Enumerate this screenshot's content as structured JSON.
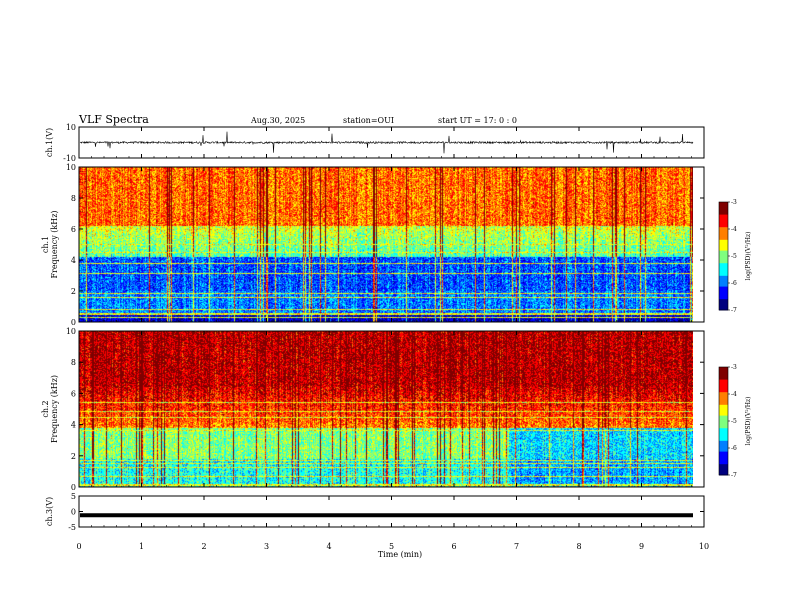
{
  "header": {
    "title": "VLF Spectra",
    "date": "Aug.30, 2025",
    "station": "station=OUI",
    "start": "start  UT =   17: 0  : 0"
  },
  "chart_data": [
    {
      "type": "line",
      "ylabel": "ch.1(V)",
      "ylim": [
        -10,
        10
      ],
      "yticks": [
        "10",
        "-10"
      ],
      "baseline": 0,
      "noise_amplitude": 1.2,
      "color": "#000000",
      "grid": false
    },
    {
      "type": "heatmap",
      "ylabel": "ch.1\nFrequency (kHz)",
      "ylim": [
        0,
        10
      ],
      "yticks": [
        "0",
        "2",
        "4",
        "6",
        "8",
        "10"
      ],
      "colorbar": {
        "label": "log(PSD)(V²/Hz)",
        "ticks": [
          "-3",
          "-4",
          "-5",
          "-6",
          "-7"
        ],
        "range": [
          -7,
          -3
        ]
      }
    },
    {
      "type": "heatmap",
      "ylabel": "ch.2\nFrequency (kHz)",
      "ylim": [
        0,
        10
      ],
      "yticks": [
        "0",
        "2",
        "4",
        "6",
        "8",
        "10"
      ],
      "colorbar": {
        "label": "log(PSD)(V²/Hz)",
        "ticks": [
          "-3",
          "-4",
          "-5",
          "-6",
          "-7"
        ],
        "range": [
          -7,
          -3
        ]
      }
    },
    {
      "type": "line",
      "ylabel": "ch.3(V)",
      "ylim": [
        -5,
        5
      ],
      "yticks": [
        "5",
        "0",
        "-5"
      ],
      "baseline": -1.2,
      "color": "#000000",
      "grid": false
    }
  ],
  "xaxis": {
    "label": "Time (min)",
    "range": [
      0,
      10
    ],
    "data_end": 9.83,
    "ticks": [
      "0",
      "1",
      "2",
      "3",
      "4",
      "5",
      "6",
      "7",
      "8",
      "9",
      "10"
    ]
  },
  "colormap": [
    "#00007f",
    "#0000ff",
    "#007fff",
    "#00ffff",
    "#7fff7f",
    "#ffff00",
    "#ff7f00",
    "#ff0000",
    "#7f0000"
  ]
}
